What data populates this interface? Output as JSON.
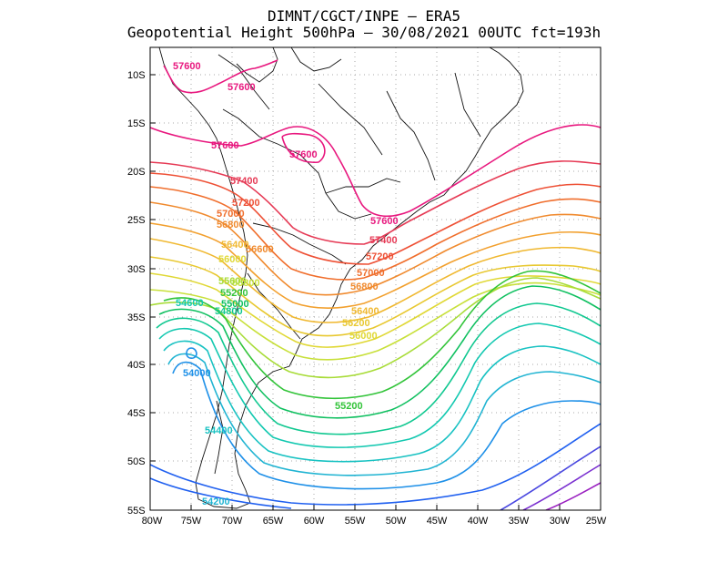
{
  "header": {
    "line1": "DIMNT/CGCT/INPE –  ERA5",
    "line2": "Geopotential Height 500hPa –  30/08/2021 00UTC fct=193h"
  },
  "axes": {
    "lat_labels": [
      "10S",
      "15S",
      "20S",
      "25S",
      "30S",
      "35S",
      "40S",
      "45S",
      "50S",
      "55S"
    ],
    "lon_labels": [
      "80W",
      "75W",
      "70W",
      "65W",
      "60W",
      "55W",
      "50W",
      "45W",
      "40W",
      "35W",
      "30W",
      "25W"
    ]
  },
  "contours": {
    "levels": [
      57600,
      57400,
      57200,
      57000,
      56800,
      56400,
      56200,
      56000,
      55600,
      55200,
      55000,
      54800,
      54600,
      54400,
      54200,
      54000
    ],
    "colors": {
      "57600": "#e8177e",
      "57400": "#e63a55",
      "57200": "#ee5035",
      "57000": "#f06e2c",
      "56800": "#f08a2e",
      "56600": "#f2a02e",
      "56400": "#f0b830",
      "56200": "#e8c830",
      "56000": "#e0d835",
      "55800": "#c8e03a",
      "55600": "#a8dc38",
      "55400": "#7ed638",
      "55200": "#33c43a",
      "55000": "#10c060",
      "54800": "#10c890",
      "54600": "#12c8b0",
      "54400": "#18c2c2",
      "54200": "#20b4d2",
      "54000": "#1e90e8",
      "low": "#2060f0",
      "deep1": "#4a48e0",
      "deep2": "#7a30d0",
      "deep3": "#9a20c0"
    },
    "labels": [
      {
        "text": "57600",
        "level": "57600"
      },
      {
        "text": "57600",
        "level": "57600"
      },
      {
        "text": "57600",
        "level": "57600"
      },
      {
        "text": "57600",
        "level": "57600"
      },
      {
        "text": "57600",
        "level": "57600"
      },
      {
        "text": "57400",
        "level": "57400"
      },
      {
        "text": "57400",
        "level": "57400"
      },
      {
        "text": "57200",
        "level": "57200"
      },
      {
        "text": "57200",
        "level": "57200"
      },
      {
        "text": "57000",
        "level": "57000"
      },
      {
        "text": "57000",
        "level": "57000"
      },
      {
        "text": "56800",
        "level": "56800"
      },
      {
        "text": "56800",
        "level": "56800"
      },
      {
        "text": "56600",
        "level": "56600"
      },
      {
        "text": "56400",
        "level": "56400"
      },
      {
        "text": "56400",
        "level": "56400"
      },
      {
        "text": "56200",
        "level": "56200"
      },
      {
        "text": "56000",
        "level": "56000"
      },
      {
        "text": "56000",
        "level": "56000"
      },
      {
        "text": "55800",
        "level": "55800"
      },
      {
        "text": "55600",
        "level": "55600"
      },
      {
        "text": "55200",
        "level": "55200"
      },
      {
        "text": "55200",
        "level": "55200"
      },
      {
        "text": "55000",
        "level": "55000"
      },
      {
        "text": "54800",
        "level": "54800"
      },
      {
        "text": "54600",
        "level": "54600"
      },
      {
        "text": "54400",
        "level": "54400"
      },
      {
        "text": "54200",
        "level": "54200"
      },
      {
        "text": "54000",
        "level": "54000"
      }
    ]
  }
}
